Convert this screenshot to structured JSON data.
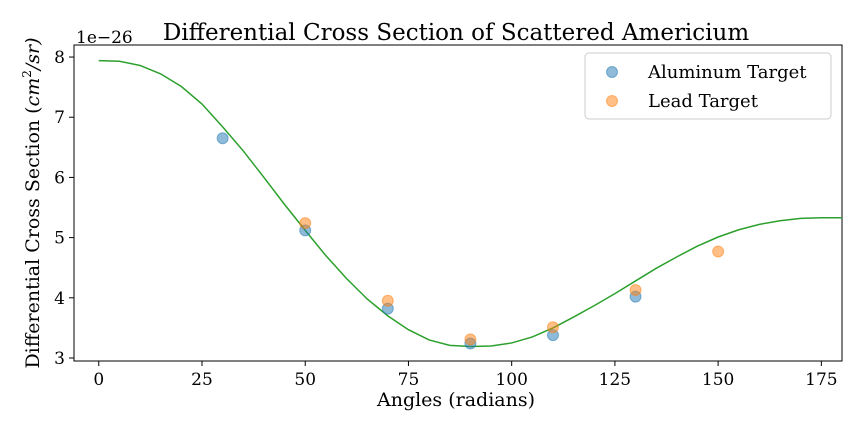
{
  "chart_data": {
    "type": "scatter",
    "title": "Differential Cross Section of Scattered Americium",
    "xlabel": "Angles (radians)",
    "ylabel_main": "Differential Cross Section (",
    "ylabel_unit_base": "cm",
    "ylabel_unit_exp": "2",
    "ylabel_unit_tail": "/sr)",
    "y_offset_label": "1e−26",
    "xlim": [
      -6,
      180
    ],
    "ylim": [
      2.95,
      8.2
    ],
    "xticks": [
      0,
      25,
      50,
      75,
      100,
      125,
      150,
      175
    ],
    "yticks": [
      3,
      4,
      5,
      6,
      7,
      8
    ],
    "legend_position": "upper right",
    "series": [
      {
        "name": "Aluminum Target",
        "color": "#1f77b4",
        "points": [
          [
            30,
            6.65
          ],
          [
            50,
            5.12
          ],
          [
            70,
            3.82
          ],
          [
            90,
            3.24
          ],
          [
            110,
            3.38
          ],
          [
            130,
            4.02
          ]
        ]
      },
      {
        "name": "Lead Target",
        "color": "#ff7f0e",
        "points": [
          [
            50,
            5.24
          ],
          [
            70,
            3.95
          ],
          [
            90,
            3.31
          ],
          [
            110,
            3.51
          ],
          [
            130,
            4.13
          ],
          [
            150,
            4.77
          ]
        ]
      }
    ],
    "fit_curve": {
      "color": "#2ca02c",
      "points": [
        [
          0,
          7.94
        ],
        [
          5,
          7.93
        ],
        [
          10,
          7.86
        ],
        [
          15,
          7.72
        ],
        [
          20,
          7.51
        ],
        [
          25,
          7.22
        ],
        [
          30,
          6.84
        ],
        [
          35,
          6.44
        ],
        [
          40,
          6.0
        ],
        [
          45,
          5.55
        ],
        [
          50,
          5.12
        ],
        [
          55,
          4.7
        ],
        [
          60,
          4.32
        ],
        [
          65,
          3.98
        ],
        [
          70,
          3.7
        ],
        [
          75,
          3.47
        ],
        [
          80,
          3.3
        ],
        [
          85,
          3.21
        ],
        [
          90,
          3.19
        ],
        [
          95,
          3.2
        ],
        [
          100,
          3.25
        ],
        [
          105,
          3.35
        ],
        [
          110,
          3.5
        ],
        [
          115,
          3.68
        ],
        [
          120,
          3.87
        ],
        [
          125,
          4.07
        ],
        [
          130,
          4.28
        ],
        [
          135,
          4.49
        ],
        [
          140,
          4.68
        ],
        [
          145,
          4.86
        ],
        [
          150,
          5.01
        ],
        [
          155,
          5.13
        ],
        [
          160,
          5.22
        ],
        [
          165,
          5.28
        ],
        [
          170,
          5.32
        ],
        [
          175,
          5.33
        ],
        [
          180,
          5.33
        ]
      ]
    }
  }
}
